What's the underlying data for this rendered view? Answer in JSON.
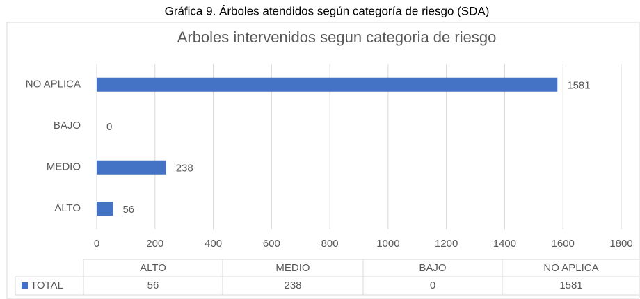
{
  "caption": "Gráfica 9. Árboles atendidos según categoría de riesgo (SDA)",
  "chart_data": {
    "type": "bar",
    "orientation": "horizontal",
    "title": "Arboles intervenidos segun categoria de riesgo",
    "categories": [
      "ALTO",
      "MEDIO",
      "BAJO",
      "NO APLICA"
    ],
    "series": [
      {
        "name": "TOTAL",
        "color": "#4472c4",
        "values": [
          56,
          238,
          0,
          1581
        ]
      }
    ],
    "xlim": [
      0,
      1800
    ],
    "xticks": [
      0,
      200,
      400,
      600,
      800,
      1000,
      1200,
      1400,
      1600,
      1800
    ],
    "grid": true,
    "data_table": true
  }
}
